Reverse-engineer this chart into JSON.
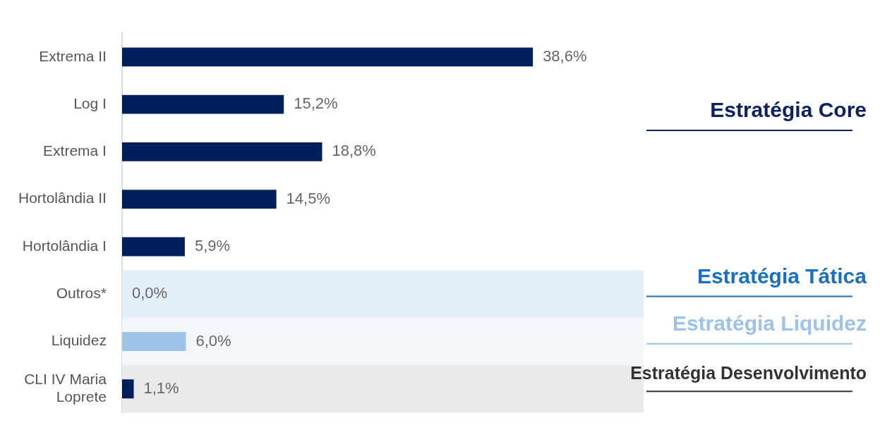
{
  "chart_data": {
    "type": "bar",
    "orientation": "horizontal",
    "categories": [
      "Extrema II",
      "Log I",
      "Extrema I",
      "Hortolândia II",
      "Hortolândia I",
      "Outros*",
      "Liquidez",
      "CLI IV Maria Loprete"
    ],
    "values": [
      38.6,
      15.2,
      18.8,
      14.5,
      5.9,
      0.0,
      6.0,
      1.1
    ],
    "colors": [
      "#001f5c",
      "#001f5c",
      "#001f5c",
      "#001f5c",
      "#001f5c",
      "#001f5c",
      "#9dc3e6",
      "#001f5c"
    ],
    "value_labels": [
      "38,6%",
      "15,2%",
      "18,8%",
      "14,5%",
      "5,9%",
      "0,0%",
      "6,0%",
      "1,1%"
    ],
    "xlim": [
      0,
      49
    ],
    "tick_labels": "y",
    "legend": false,
    "annotations": [
      "Estratégia Core"
    ],
    "bands": [
      {
        "axis": "y",
        "from": "Outros*",
        "to": "Outros*",
        "label": "Estratégia Tática",
        "color": "#e4eef8"
      },
      {
        "axis": "y",
        "from": "Liquidez",
        "to": "Liquidez",
        "label": "Estratégia Liquidez",
        "color": "#f3f7fb"
      },
      {
        "axis": "y",
        "from": "CLI IV Maria Loprete",
        "to": "CLI IV Maria Loprete",
        "label": "Estratégia Desenvolvimento",
        "color": "#eaeaea"
      }
    ]
  }
}
